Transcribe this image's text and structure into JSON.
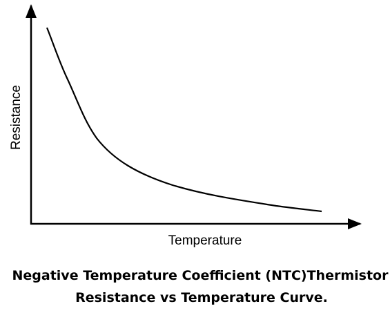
{
  "axes": {
    "y_label": "Resistance",
    "x_label": "Temperature"
  },
  "caption": {
    "lines": [
      "Negative Temperature Coefficient (NTC)Thermistor",
      "Resistance vs Temperature Curve."
    ]
  }
}
